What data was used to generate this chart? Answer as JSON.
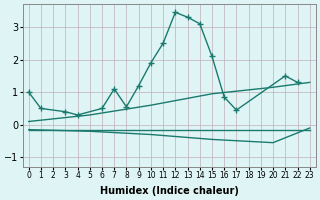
{
  "x": [
    0,
    1,
    2,
    3,
    4,
    5,
    6,
    7,
    8,
    9,
    10,
    11,
    12,
    13,
    14,
    15,
    16,
    17,
    18,
    19,
    20,
    21,
    22,
    23
  ],
  "line1": [
    1.0,
    0.5,
    null,
    0.4,
    0.3,
    null,
    0.5,
    1.1,
    0.55,
    1.2,
    1.9,
    2.5,
    3.45,
    3.3,
    3.1,
    2.1,
    0.85,
    0.45,
    null,
    null,
    null,
    1.5,
    1.3,
    null
  ],
  "line2": [
    null,
    null,
    null,
    null,
    null,
    null,
    null,
    null,
    null,
    null,
    null,
    null,
    null,
    null,
    null,
    null,
    null,
    null,
    null,
    null,
    null,
    null,
    null,
    null
  ],
  "line3_x": [
    0,
    5,
    10,
    15,
    20,
    23
  ],
  "line3_y": [
    0.1,
    0.3,
    0.6,
    0.95,
    1.15,
    1.3
  ],
  "line4_x": [
    0,
    5,
    10,
    15,
    20,
    23
  ],
  "line4_y": [
    -0.15,
    -0.2,
    -0.3,
    -0.45,
    -0.55,
    -0.1
  ],
  "line5_x": [
    0,
    23
  ],
  "line5_y": [
    -0.15,
    -0.15
  ],
  "xlabel": "Humidex (Indice chaleur)",
  "yticks": [
    -1,
    0,
    1,
    2,
    3
  ],
  "xticks": [
    0,
    1,
    2,
    3,
    4,
    5,
    6,
    7,
    8,
    9,
    10,
    11,
    12,
    13,
    14,
    15,
    16,
    17,
    18,
    19,
    20,
    21,
    22,
    23
  ],
  "xlim": [
    -0.5,
    23.5
  ],
  "ylim": [
    -1.3,
    3.7
  ],
  "line_color": "#1a7a6e",
  "bg_color": "#dff5f5",
  "grid_color": "#c0b0b8"
}
